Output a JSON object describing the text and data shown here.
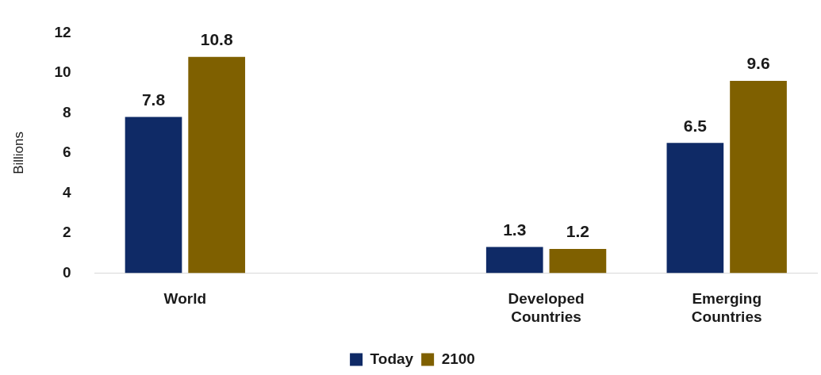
{
  "chart_data": {
    "type": "bar",
    "ylabel": "Billions",
    "categories": [
      "World",
      null,
      "Developed Countries",
      "Emerging Countries"
    ],
    "series": [
      {
        "name": "Today",
        "color": "#0f2a66",
        "values": [
          7.8,
          null,
          1.3,
          6.5
        ]
      },
      {
        "name": "2100",
        "color": "#7f6000",
        "values": [
          10.8,
          null,
          1.2,
          9.6
        ]
      }
    ],
    "ylim": [
      0,
      12
    ],
    "yticks": [
      0,
      2,
      4,
      6,
      8,
      10,
      12
    ],
    "grid": false,
    "legend": "bottom",
    "data_labels": true
  }
}
